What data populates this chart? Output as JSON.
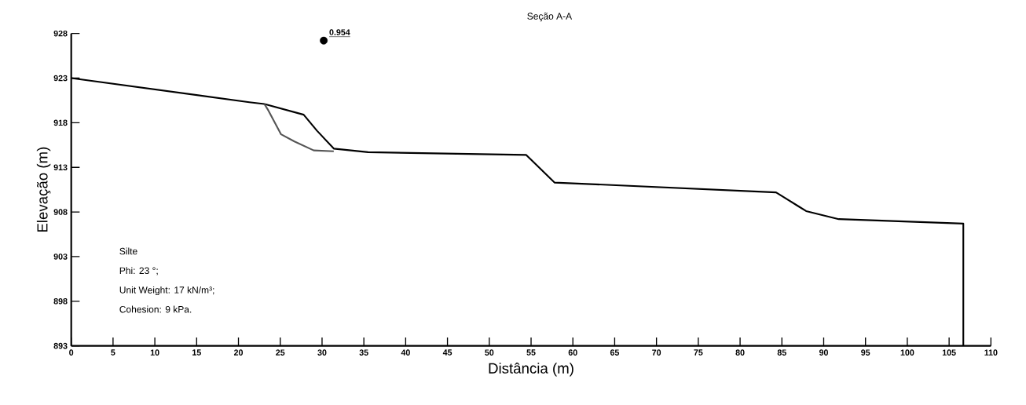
{
  "chart_data": {
    "type": "line",
    "title": "Seção A-A",
    "xlabel": "Distância (m)",
    "ylabel": "Elevação (m)",
    "xlim": [
      0,
      110
    ],
    "ylim": [
      893,
      928
    ],
    "xticks": [
      0,
      5,
      10,
      15,
      20,
      25,
      30,
      35,
      40,
      45,
      50,
      55,
      60,
      65,
      70,
      75,
      80,
      85,
      90,
      95,
      100,
      105,
      110
    ],
    "yticks": [
      893,
      898,
      903,
      908,
      913,
      918,
      923,
      928
    ],
    "grid": false,
    "line_style": "solid",
    "series": [
      {
        "color": "#000000",
        "marker": "none",
        "x": [
          0,
          21.3,
          23.1,
          27.8,
          29.4,
          31.4,
          35.5,
          54.4,
          57.8,
          84.3,
          87.9,
          91.8,
          106.7,
          106.7
        ],
        "values": [
          923,
          920.3,
          920.1,
          918.9,
          917.1,
          915.1,
          914.7,
          914.4,
          911.3,
          910.2,
          908.1,
          907.2,
          906.7,
          893
        ]
      },
      {
        "color": "#555555",
        "marker": "none",
        "x": [
          23.1,
          23.5,
          25.1,
          26.7,
          29,
          31.4
        ],
        "values": [
          920.1,
          919.5,
          916.7,
          915.9,
          914.9,
          914.8
        ]
      },
      {
        "type": "scatter",
        "color": "#000000",
        "marker": "circle",
        "x": [
          30.2
        ],
        "values": [
          927.2
        ]
      }
    ],
    "annotations": [
      {
        "text": "0.954",
        "x": 30.2,
        "y": 927.2
      },
      "Silte",
      "Phi: 23 °;",
      "Unit Weight: 17 kN/m³;",
      "Cohesion: 9 kPa."
    ]
  }
}
